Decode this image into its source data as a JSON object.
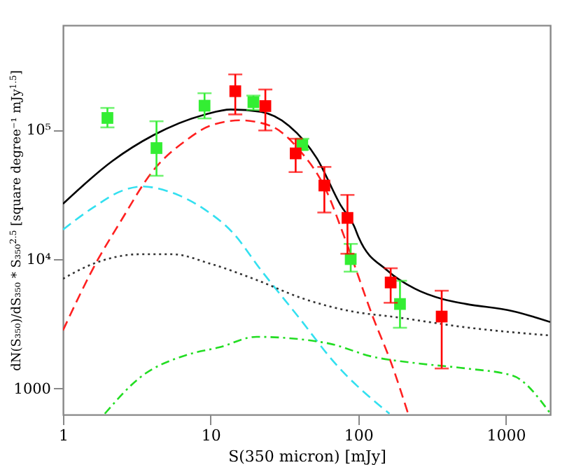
{
  "chart_data": {
    "type": "line",
    "xlabel": "S(350 micron) [mJy]",
    "ylabel": "dN(S₃₅₀)/dS₃₅₀ * S₃₅₀$^{2.5}$ [square degree⁻¹ mJy$^{1.5}$]",
    "log": "xy",
    "grid": false,
    "xlim": [
      1,
      2000
    ],
    "xticks": [
      1,
      10,
      100,
      1000
    ],
    "ylim": [
      630,
      640000
    ],
    "yticks": [
      1000,
      {
        "value": 10000,
        "label": "10⁴"
      },
      {
        "value": 100000,
        "label": "10⁵"
      }
    ],
    "series": [
      {
        "color": "#000000",
        "line_style": "solid",
        "marker": "none",
        "x": [
          1,
          2.15,
          4.1,
          9.2,
          13.7,
          22,
          34,
          52.5,
          76,
          94,
          101,
          157,
          243,
          376,
          540,
          1110,
          2000
        ],
        "values": [
          26700,
          57000,
          90600,
          131000,
          143000,
          137000,
          107000,
          60000,
          26100,
          17900,
          14600,
          8200,
          5900,
          4900,
          4500,
          3970,
          3270
        ]
      },
      {
        "color": "#ff2020",
        "line_style": "dashed",
        "marker": "none",
        "x": [
          1,
          1.73,
          2.4,
          4.1,
          6.9,
          9.9,
          15.9,
          25.4,
          39.5,
          61,
          81,
          126,
          168,
          218
        ],
        "values": [
          2820,
          10000,
          18700,
          48500,
          83400,
          107000,
          118000,
          107000,
          70600,
          33500,
          14600,
          3560,
          1560,
          640
        ]
      },
      {
        "color": "#33e0f0",
        "line_style": "dashed",
        "marker": "none",
        "x": [
          1,
          1.6,
          2.48,
          3.45,
          5.1,
          9.2,
          14.2,
          22,
          39.5,
          70,
          163
        ],
        "values": [
          16900,
          25000,
          33500,
          36400,
          33500,
          24000,
          15900,
          8200,
          3560,
          1560,
          640
        ]
      },
      {
        "color": "#333333",
        "line_style": "dotted",
        "marker": "none",
        "x": [
          1,
          1.6,
          3.3,
          5.5,
          10,
          20.5,
          42,
          88,
          181,
          540,
          2000
        ],
        "values": [
          7050,
          9200,
          10900,
          10900,
          9200,
          6900,
          4970,
          3970,
          3560,
          2970,
          2570
        ]
      },
      {
        "color": "#22dd22",
        "line_style": "dashdot",
        "marker": "none",
        "x": [
          1.92,
          3.3,
          6.9,
          11.4,
          20.5,
          61,
          126,
          262,
          540,
          1110,
          2000
        ],
        "values": [
          640,
          1210,
          1820,
          2080,
          2510,
          2250,
          1760,
          1560,
          1430,
          1260,
          645
        ]
      },
      {
        "type": "scatter",
        "color": "#33ee33",
        "marker": "square",
        "x": [
          2.0,
          4.3,
          9.1,
          19.5,
          41.8,
          89,
          192
        ],
        "values": [
          123000,
          72000,
          153000,
          163000,
          76000,
          10000,
          4500
        ],
        "errors": [
          [
            104000,
            147000
          ],
          [
            44000,
            116000
          ],
          [
            122000,
            191000
          ],
          [
            142000,
            183000
          ],
          [
            70000,
            85000
          ],
          [
            8000,
            13100
          ],
          [
            2950,
            6800
          ]
        ]
      },
      {
        "type": "scatter",
        "color": "#ff0000",
        "marker": "square",
        "x": [
          14.7,
          23.5,
          37.7,
          59,
          84.6,
          166,
          368
        ],
        "values": [
          198000,
          152000,
          65500,
          37000,
          20800,
          6600,
          3600
        ],
        "errors": [
          [
            131000,
            267000
          ],
          [
            98500,
            204000
          ],
          [
            47000,
            85000
          ],
          [
            22900,
            51500
          ],
          [
            11000,
            31300
          ],
          [
            4600,
            8500
          ],
          [
            1430,
            5700
          ]
        ]
      }
    ]
  }
}
